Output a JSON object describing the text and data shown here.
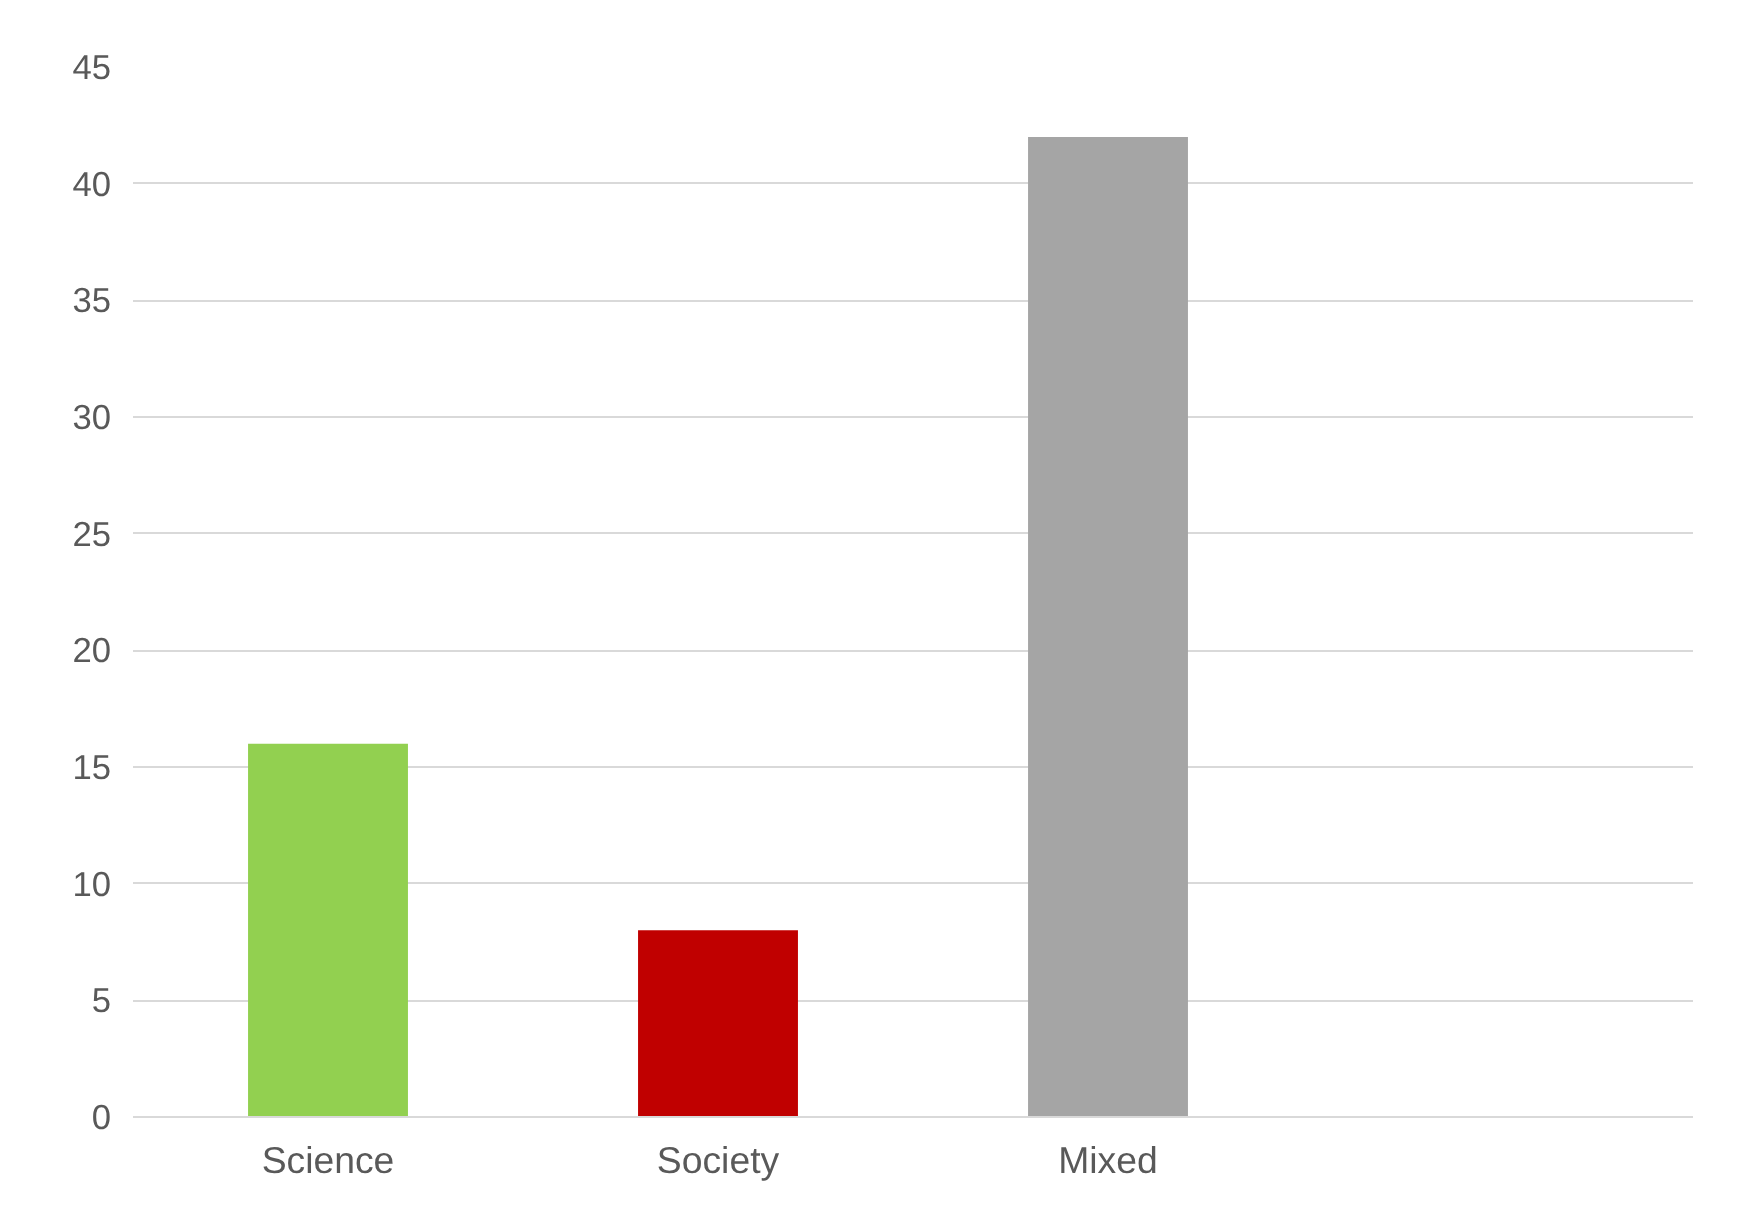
{
  "chart_data": {
    "type": "bar",
    "categories": [
      "Science",
      "Society",
      "Mixed",
      null
    ],
    "values": [
      16,
      8,
      42,
      null
    ],
    "colors": [
      "#92d050",
      "#c00000",
      "#a5a5a5",
      "#a5a5a5"
    ],
    "ylim": [
      0,
      45
    ],
    "yticks": [
      0,
      5,
      10,
      15,
      20,
      25,
      30,
      35,
      40,
      45
    ],
    "grid": "y"
  }
}
